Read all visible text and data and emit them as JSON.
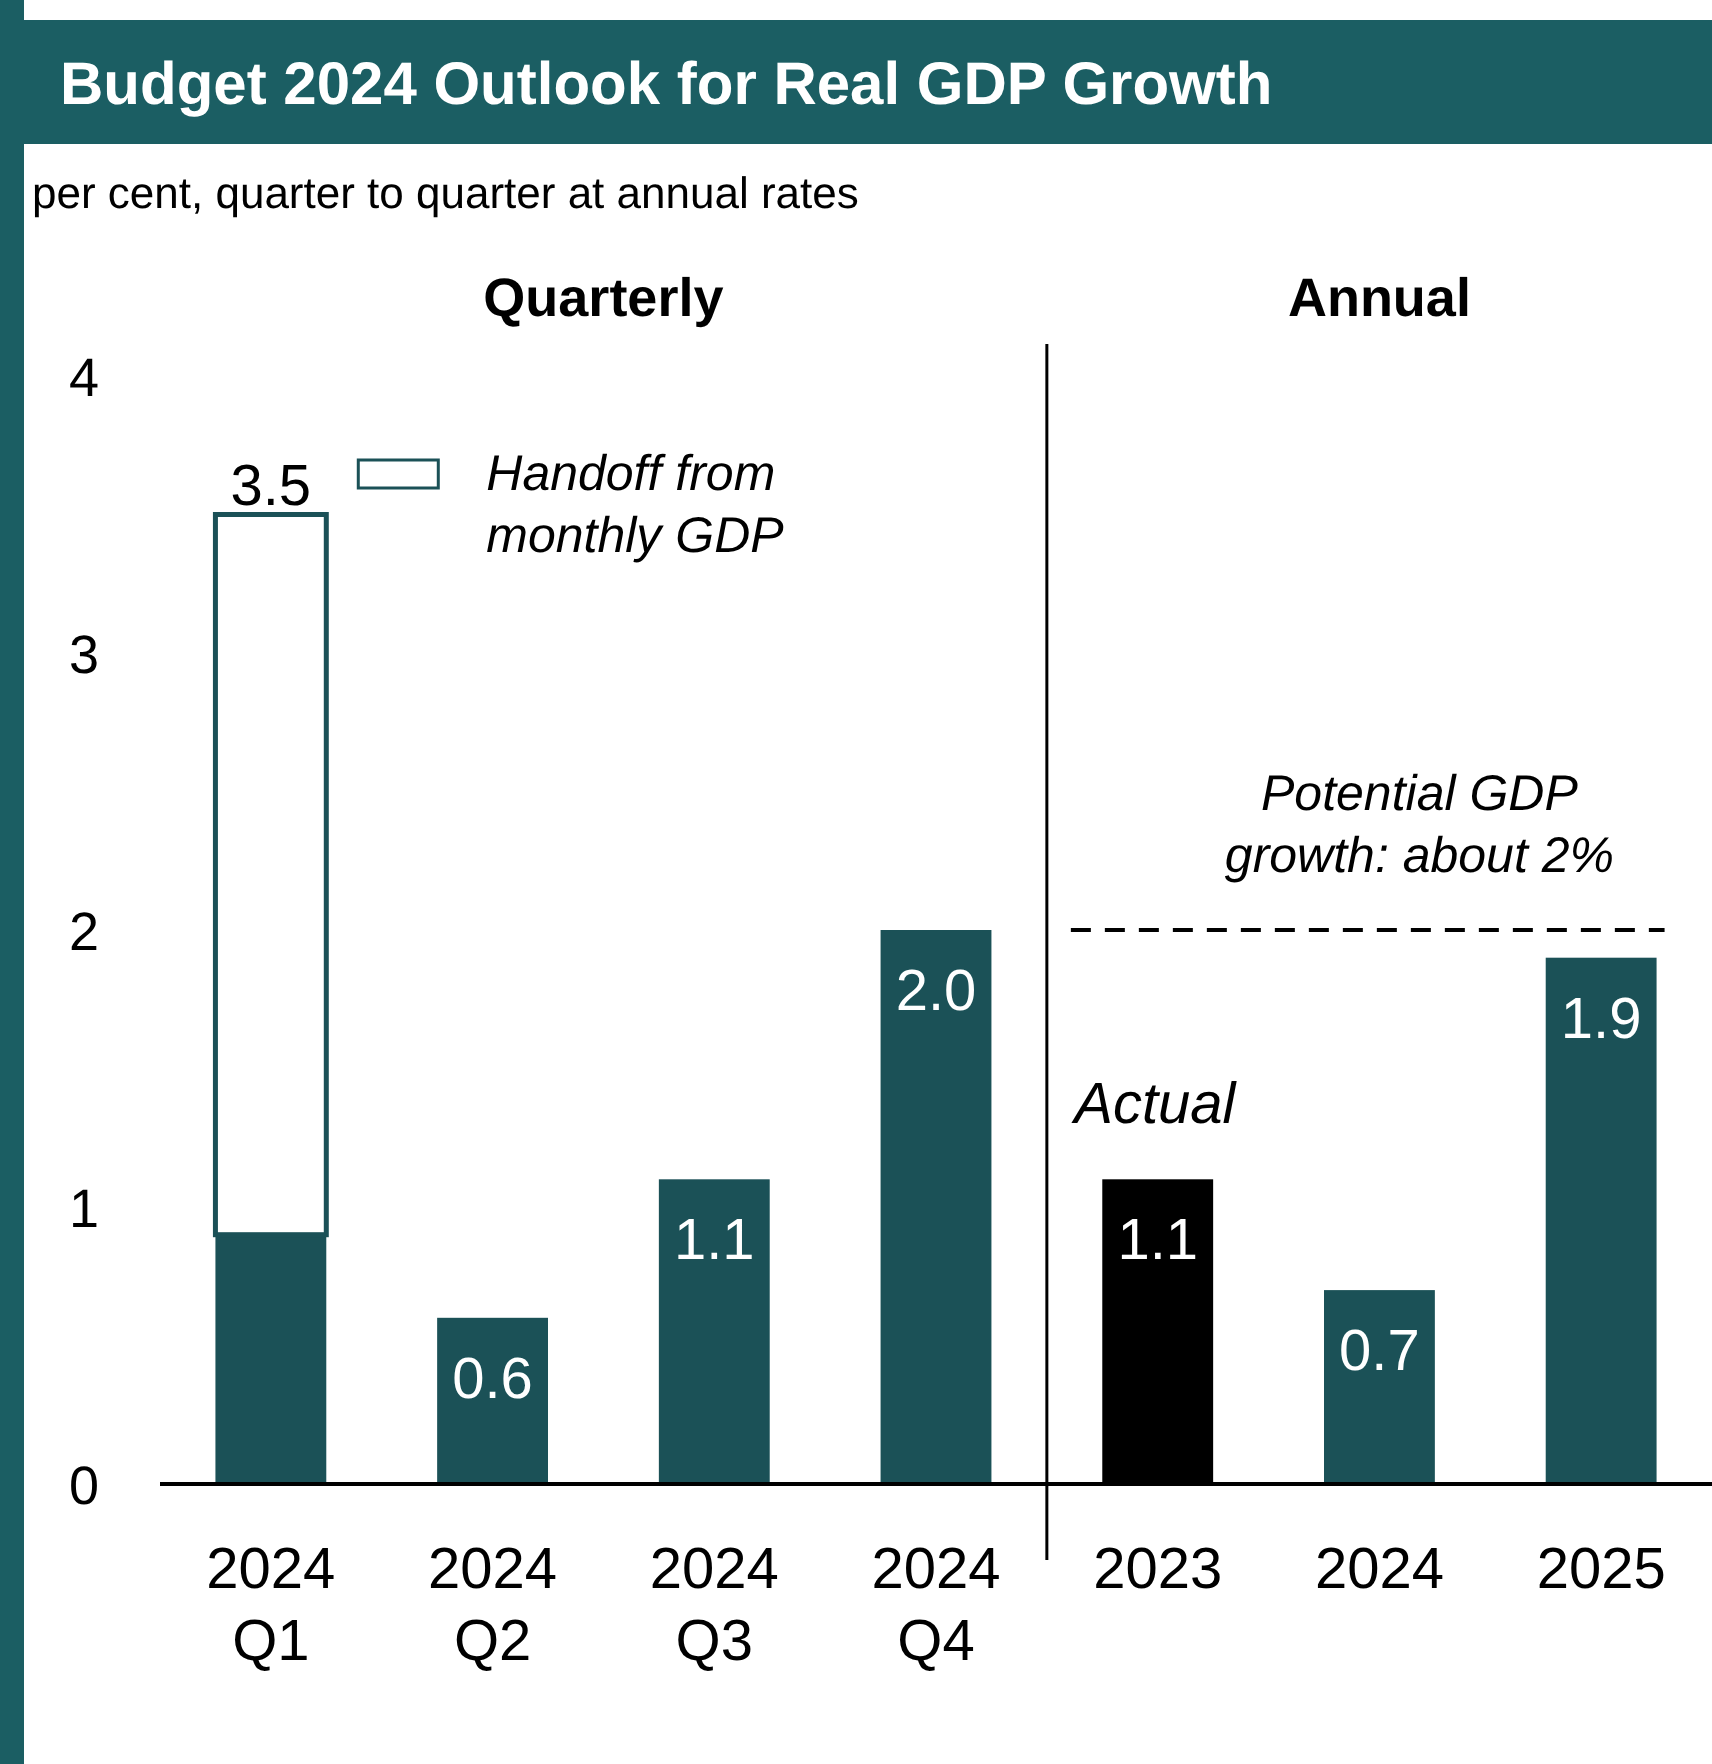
{
  "chart_data": {
    "type": "bar",
    "title": "Budget 2024 Outlook for Real GDP Growth",
    "subtitle": "per cent, quarter to quarter at annual rates",
    "categories": [
      "2024 Q1",
      "2024 Q2",
      "2024 Q3",
      "2024 Q4",
      "2023",
      "2024",
      "2025"
    ],
    "stacked": true,
    "series": [
      {
        "colors": [
          "#1b5157",
          "#1b5157",
          "#1b5157",
          "#1b5157",
          "#000000",
          "#1b5157",
          "#1b5157"
        ],
        "values": [
          0.9,
          0.6,
          1.1,
          2.0,
          1.1,
          0.7,
          1.9
        ],
        "value_labels": [
          null,
          "0.6",
          "1.1",
          "2.0",
          "1.1",
          "0.7",
          "1.9"
        ]
      },
      {
        "name": "Handoff from monthly GDP",
        "color": "#ffffff",
        "values": [
          2.6,
          null,
          null,
          null,
          null,
          null,
          null
        ]
      }
    ],
    "totals": [
      "3.5",
      null,
      null,
      null,
      null,
      null,
      null
    ],
    "ylim": [
      0,
      4
    ],
    "yticks": [
      0,
      1,
      2,
      3,
      4
    ],
    "grid": false,
    "legend": "top",
    "ref_lines": [
      {
        "axis": "y",
        "value": 2,
        "label": "Potential GDP growth: about 2%",
        "line_style": "dashed",
        "color": "#000000"
      }
    ],
    "annotations": [
      "Quarterly",
      "Annual",
      {
        "text": "Actual",
        "x": "2023",
        "y": 1.1
      }
    ]
  }
}
